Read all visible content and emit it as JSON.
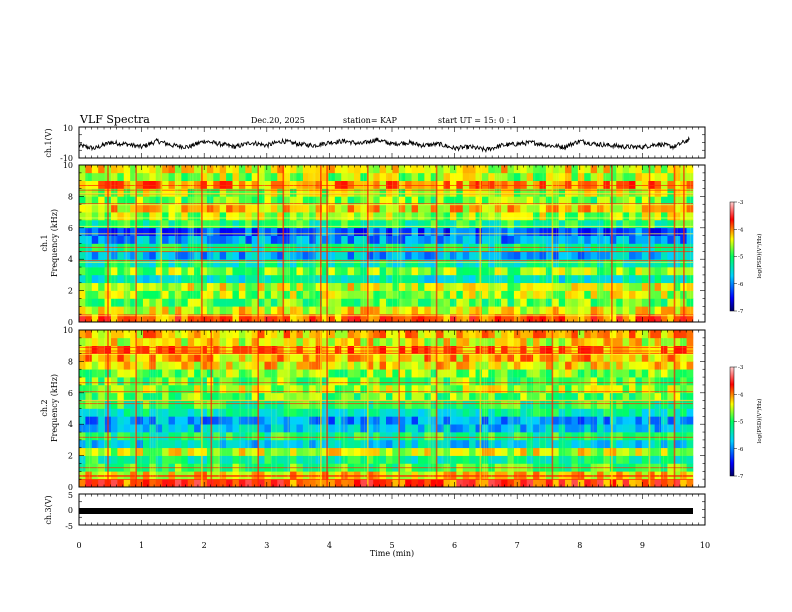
{
  "header": {
    "title": "VLF Spectra",
    "date": "Dec.20, 2025",
    "station": "station= KAP",
    "start_ut": "start  UT =   15: 0  : 1"
  },
  "chart_data": [
    {
      "type": "line",
      "name": "ch1-waveform",
      "ylabel": "ch.1(V)",
      "ylim": [
        -10,
        10
      ],
      "yticks": [
        10,
        -10
      ],
      "xlim": [
        0,
        10
      ],
      "x": [
        0,
        0.25,
        0.5,
        0.75,
        1,
        1.25,
        1.5,
        1.75,
        2,
        2.25,
        2.5,
        2.75,
        3,
        3.25,
        3.5,
        3.75,
        4,
        4.25,
        4.5,
        4.75,
        5,
        5.25,
        5.5,
        5.75,
        6,
        6.25,
        6.5,
        6.75,
        7,
        7.25,
        7.5,
        7.75,
        8,
        8.25,
        8.5,
        8.75,
        9,
        9.25,
        9.5,
        9.75
      ],
      "y": [
        -2,
        -4,
        0,
        -1,
        -3,
        1,
        -2,
        -3,
        1,
        -1,
        -3,
        0,
        -2,
        1,
        -1,
        -2,
        0,
        1,
        -1,
        2,
        -1,
        0,
        -2,
        -1,
        -4,
        -3,
        -5,
        -2,
        -1,
        0,
        -2,
        -3,
        1,
        -1,
        -2,
        -3,
        -3,
        -1,
        -3,
        2
      ]
    },
    {
      "type": "heatmap",
      "name": "ch1-spectrogram",
      "ylabel_line1": "ch.1",
      "ylabel_line2": "Frequency (kHz)",
      "ylim": [
        0,
        10
      ],
      "yticks": [
        0,
        2,
        4,
        6,
        8,
        10
      ],
      "xlim": [
        0,
        10
      ],
      "colorbar_label": "log(PSD)(V²/Hz)",
      "colorbar_range": [
        -7,
        -3
      ],
      "colorbar_ticks": [
        "-3",
        "-4",
        "-5",
        "-6",
        "-7"
      ],
      "band_levels_low_to_high_freq": [
        -3.9,
        -4.4,
        -4.8,
        -4.6,
        -4.5,
        -5.4,
        -4.7,
        -5.3,
        -5.8,
        -5.2,
        -5.9,
        -6.2,
        -5.1,
        -4.6,
        -4.3,
        -4.8,
        -4.6,
        -4.1,
        -4.6,
        -4.4
      ],
      "event_lines_minutes": [
        0.45,
        0.9,
        1.3,
        1.95,
        2.85,
        3.25,
        3.85,
        3.95,
        4.6,
        5.7,
        6.4,
        7.55,
        8.5,
        9.1,
        9.5,
        9.65
      ]
    },
    {
      "type": "heatmap",
      "name": "ch2-spectrogram",
      "ylabel_line1": "ch.2",
      "ylabel_line2": "Frequency (kHz)",
      "ylim": [
        0,
        10
      ],
      "yticks": [
        0,
        2,
        4,
        6,
        8,
        10
      ],
      "xlim": [
        0,
        10
      ],
      "colorbar_label": "log(PSD)(V²/Hz)",
      "colorbar_range": [
        -7,
        -3
      ],
      "colorbar_ticks": [
        "-3",
        "-4",
        "-5",
        "-6",
        "-7"
      ],
      "band_levels_low_to_high_freq": [
        -3.8,
        -4.3,
        -4.9,
        -5.2,
        -4.5,
        -5.6,
        -5.1,
        -5.7,
        -5.9,
        -5.3,
        -5.0,
        -4.8,
        -4.6,
        -4.8,
        -4.7,
        -4.3,
        -4.2,
        -4.0,
        -4.4,
        -4.2
      ],
      "event_lines_minutes": [
        0.45,
        0.9,
        1.95,
        2.1,
        2.85,
        3.85,
        3.95,
        4.6,
        5.1,
        5.7,
        6.4,
        7.55,
        8.5,
        9.1,
        9.5
      ]
    },
    {
      "type": "line",
      "name": "ch3-waveform",
      "ylabel": "ch.3(V)",
      "ylim": [
        -5,
        5
      ],
      "yticks": [
        5,
        0,
        -5
      ],
      "xlim": [
        0,
        10
      ],
      "x": [
        0,
        9.8
      ],
      "y": [
        0,
        0
      ]
    }
  ],
  "x_axis": {
    "label": "Time  (min)",
    "tick_labels": [
      "0",
      "1",
      "2",
      "3",
      "4",
      "5",
      "6",
      "7",
      "8",
      "9",
      "10"
    ],
    "range": [
      0,
      10
    ]
  },
  "colors": {
    "axis": "#000000",
    "cmap_stops": [
      "#00007a",
      "#0000ff",
      "#00c8ff",
      "#00ff80",
      "#ffff00",
      "#ff0000",
      "#ffc8c8"
    ]
  }
}
